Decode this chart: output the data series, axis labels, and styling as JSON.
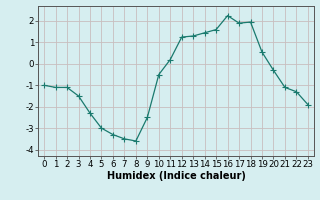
{
  "x": [
    0,
    1,
    2,
    3,
    4,
    5,
    6,
    7,
    8,
    9,
    10,
    11,
    12,
    13,
    14,
    15,
    16,
    17,
    18,
    19,
    20,
    21,
    22,
    23
  ],
  "y": [
    -1.0,
    -1.1,
    -1.1,
    -1.5,
    -2.3,
    -3.0,
    -3.3,
    -3.5,
    -3.6,
    -2.5,
    -0.5,
    0.2,
    1.25,
    1.3,
    1.45,
    1.6,
    2.25,
    1.9,
    1.95,
    0.55,
    -0.3,
    -1.1,
    -1.3,
    -1.9
  ],
  "line_color": "#1a7a6e",
  "marker": "D",
  "marker_size": 2.2,
  "bg_color": "#d6eef0",
  "grid_color": "#c8bebe",
  "axis_color": "#555555",
  "xlabel": "Humidex (Indice chaleur)",
  "xlim": [
    -0.5,
    23.5
  ],
  "ylim": [
    -4.3,
    2.7
  ],
  "yticks": [
    -4,
    -3,
    -2,
    -1,
    0,
    1,
    2
  ],
  "xticks": [
    0,
    1,
    2,
    3,
    4,
    5,
    6,
    7,
    8,
    9,
    10,
    11,
    12,
    13,
    14,
    15,
    16,
    17,
    18,
    19,
    20,
    21,
    22,
    23
  ],
  "label_fontsize": 7.0,
  "tick_fontsize": 6.2
}
